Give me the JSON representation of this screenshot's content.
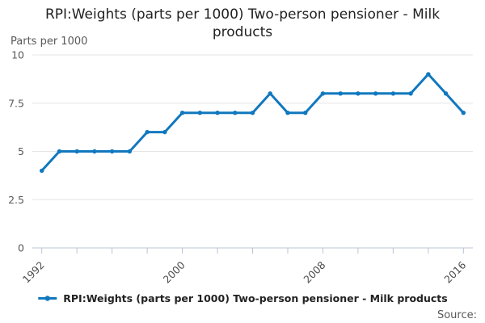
{
  "title": "RPI:Weights (parts per 1000) Two-person pensioner - Milk products",
  "y_axis_unit": "Parts per 1000",
  "legend": {
    "label": "RPI:Weights (parts per 1000) Two-person pensioner - Milk products",
    "marker": "line-dot-icon"
  },
  "source": {
    "label": "Source:"
  },
  "colors": {
    "line": "#1178be",
    "grid": "#e5e5e5",
    "axis": "#b9c3d6",
    "title_text": "#222222",
    "tick_text": "#4d4d4d",
    "muted_text": "#595959"
  },
  "chart_data": {
    "type": "line",
    "title": "RPI:Weights (parts per 1000) Two-person pensioner - Milk products",
    "ylabel": "Parts per 1000",
    "xlabel": "",
    "x": [
      1992,
      1993,
      1994,
      1995,
      1996,
      1997,
      1998,
      1999,
      2000,
      2001,
      2002,
      2003,
      2004,
      2005,
      2006,
      2007,
      2008,
      2009,
      2010,
      2011,
      2012,
      2013,
      2014,
      2015,
      2016
    ],
    "series": [
      {
        "name": "RPI:Weights (parts per 1000) Two-person pensioner - Milk products",
        "values": [
          4,
          5,
          5,
          5,
          5,
          5,
          6,
          6,
          7,
          7,
          7,
          7,
          7,
          8,
          7,
          7,
          8,
          8,
          8,
          8,
          8,
          8,
          9,
          8,
          7
        ]
      }
    ],
    "ylim": [
      0,
      10
    ],
    "yticks": [
      0,
      2.5,
      5,
      7.5,
      10
    ],
    "ytick_labels": [
      "0",
      "2.5",
      "5",
      "7.5",
      "10"
    ],
    "xtick_minor_step_years": 2,
    "xtick_labels": [
      1992,
      2000,
      2008,
      2016
    ],
    "grid": "horizontal",
    "legend_position": "bottom",
    "marker": "circle"
  }
}
